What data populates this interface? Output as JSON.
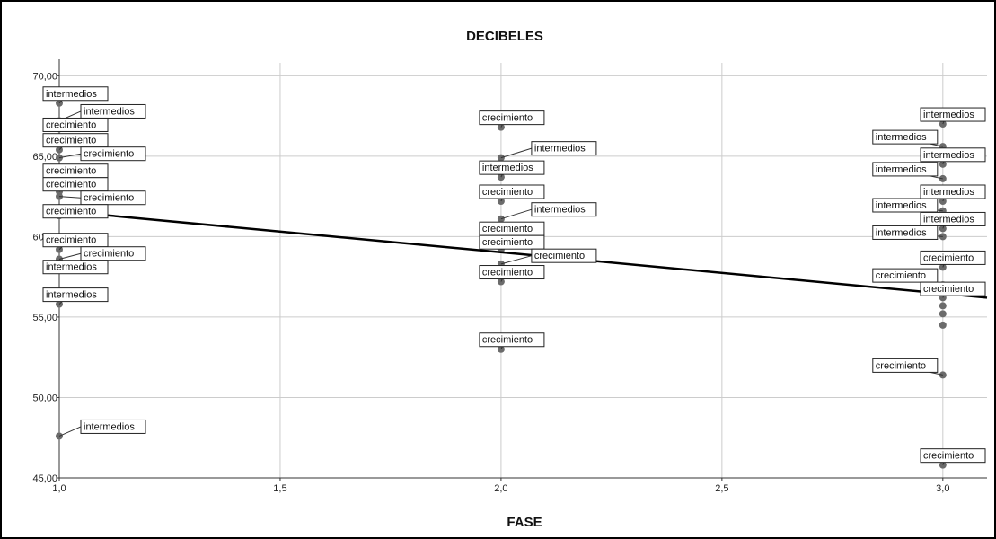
{
  "chart_data": {
    "type": "scatter",
    "title": "DECIBELES",
    "xlabel": "FASE",
    "ylabel": "",
    "xlim": [
      1.0,
      3.1
    ],
    "ylim": [
      45,
      70.8
    ],
    "x_ticks": [
      "1,0",
      "1,5",
      "2,0",
      "2,5",
      "3,0"
    ],
    "x_tick_values": [
      1.0,
      1.5,
      2.0,
      2.5,
      3.0
    ],
    "y_ticks": [
      "45,00",
      "50,00",
      "55,00",
      "60,00",
      "65,00",
      "70,00"
    ],
    "y_tick_values": [
      45,
      50,
      55,
      60,
      65,
      70
    ],
    "grid": true,
    "colors": {
      "points": "#6b6b6b",
      "fit_line": "#000000",
      "grid": "#cccccc",
      "frame": "#000000"
    },
    "fit_line": {
      "x": [
        1.0,
        3.1
      ],
      "y": [
        61.6,
        56.2
      ]
    },
    "points": [
      {
        "x": 1.0,
        "y": 68.3,
        "label": "intermedios"
      },
      {
        "x": 1.0,
        "y": 67.2,
        "label": "intermedios"
      },
      {
        "x": 1.0,
        "y": 66.7,
        "label": "crecimiento"
      },
      {
        "x": 1.0,
        "y": 65.4,
        "label": "crecimiento"
      },
      {
        "x": 1.0,
        "y": 64.9,
        "label": "crecimiento"
      },
      {
        "x": 1.0,
        "y": 63.5,
        "label": "crecimiento"
      },
      {
        "x": 1.0,
        "y": 62.8,
        "label": "crecimiento"
      },
      {
        "x": 1.0,
        "y": 62.5,
        "label": "crecimiento"
      },
      {
        "x": 1.0,
        "y": 61.3,
        "label": "crecimiento"
      },
      {
        "x": 1.0,
        "y": 59.2,
        "label": "crecimiento"
      },
      {
        "x": 1.0,
        "y": 58.6,
        "label": "crecimiento"
      },
      {
        "x": 1.0,
        "y": 58.2,
        "label": "intermedios"
      },
      {
        "x": 1.0,
        "y": 55.8,
        "label": "intermedios"
      },
      {
        "x": 1.0,
        "y": 47.6,
        "label": "intermedios"
      },
      {
        "x": 2.0,
        "y": 66.8,
        "label": "crecimiento"
      },
      {
        "x": 2.0,
        "y": 64.9,
        "label": "intermedios"
      },
      {
        "x": 2.0,
        "y": 63.7,
        "label": "intermedios"
      },
      {
        "x": 2.0,
        "y": 62.2,
        "label": "crecimiento"
      },
      {
        "x": 2.0,
        "y": 61.1,
        "label": "intermedios"
      },
      {
        "x": 2.0,
        "y": 59.9,
        "label": "crecimiento"
      },
      {
        "x": 2.0,
        "y": 59.2,
        "label": "crecimiento"
      },
      {
        "x": 2.0,
        "y": 58.3,
        "label": "crecimiento"
      },
      {
        "x": 2.0,
        "y": 57.2,
        "label": "crecimiento"
      },
      {
        "x": 2.0,
        "y": 53.0,
        "label": "crecimiento"
      },
      {
        "x": 3.0,
        "y": 67.0,
        "label": "intermedios"
      },
      {
        "x": 3.0,
        "y": 65.6,
        "label": "intermedios"
      },
      {
        "x": 3.0,
        "y": 64.5,
        "label": "intermedios"
      },
      {
        "x": 3.0,
        "y": 63.6,
        "label": "intermedios"
      },
      {
        "x": 3.0,
        "y": 62.2,
        "label": "intermedios"
      },
      {
        "x": 3.0,
        "y": 61.6,
        "label": "intermedios"
      },
      {
        "x": 3.0,
        "y": 60.5,
        "label": "intermedios"
      },
      {
        "x": 3.0,
        "y": 60.0,
        "label": "intermedios"
      },
      {
        "x": 3.0,
        "y": 58.1,
        "label": "crecimiento"
      },
      {
        "x": 3.0,
        "y": 57.0,
        "label": "crecimiento"
      },
      {
        "x": 3.0,
        "y": 56.2,
        "label": "crecimiento"
      },
      {
        "x": 3.0,
        "y": 51.4,
        "label": "crecimiento"
      },
      {
        "x": 3.0,
        "y": 45.8,
        "label": "crecimiento"
      },
      {
        "x": 3.0,
        "y": 55.7,
        "label": ""
      },
      {
        "x": 3.0,
        "y": 55.2,
        "label": ""
      },
      {
        "x": 3.0,
        "y": 54.5,
        "label": ""
      }
    ]
  }
}
